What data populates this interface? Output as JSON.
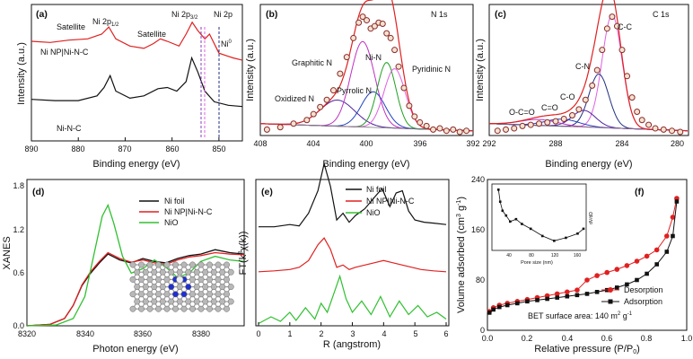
{
  "chart_data": [
    {
      "id": "a",
      "panel_label": "(a)",
      "type": "line",
      "xlabel": "Binding energy (eV)",
      "ylabel": "Intensity (a.u.)",
      "xlim": [
        890,
        845
      ],
      "xticks": [
        "890",
        "880",
        "870",
        "860",
        "850"
      ],
      "annotations": [
        "Satellite",
        "Ni 2p1/2",
        "Satellite",
        "Ni 2p3/2",
        "Ni 2p",
        "Ni0",
        "Ni NP|Ni-N-C",
        "Ni-N-C"
      ],
      "series": [
        {
          "name": "Ni NP|Ni-N-C",
          "color": "#e02020",
          "x": [
            890,
            886,
            882,
            878,
            875,
            873.5,
            872,
            869,
            866,
            864,
            862.5,
            861,
            858.5,
            857,
            855.7,
            854.5,
            853,
            852,
            850,
            847,
            845
          ],
          "y": [
            0.84,
            0.83,
            0.85,
            0.86,
            0.9,
            0.96,
            0.86,
            0.8,
            0.78,
            0.82,
            0.86,
            0.84,
            0.8,
            0.9,
            1.0,
            0.93,
            0.86,
            0.9,
            0.74,
            0.7,
            0.68
          ]
        },
        {
          "name": "Ni-N-C",
          "color": "#111111",
          "x": [
            890,
            885,
            880,
            876,
            874.5,
            873.2,
            872,
            869,
            866,
            863,
            861,
            859,
            857,
            855.8,
            854.5,
            853,
            851,
            848,
            845
          ],
          "y": [
            0.35,
            0.34,
            0.34,
            0.38,
            0.45,
            0.55,
            0.42,
            0.36,
            0.38,
            0.44,
            0.45,
            0.42,
            0.5,
            0.7,
            0.58,
            0.42,
            0.33,
            0.3,
            0.29
          ]
        }
      ]
    },
    {
      "id": "b",
      "panel_label": "(b)",
      "title": "N 1s",
      "type": "line",
      "xlabel": "Binding energy (eV)",
      "ylabel": "Intensity (a.u.)",
      "xlim": [
        408,
        392
      ],
      "xticks": [
        "408",
        "404",
        "400",
        "396",
        "392"
      ],
      "peak_labels": [
        "Graphitic N",
        "Ni-N",
        "Pyridinic N",
        "Oxidized N",
        "Pyrrolic N"
      ],
      "components": [
        {
          "name": "Oxidized N",
          "center": 402.2,
          "height": 0.22,
          "width": 1.3,
          "color": "#5020a0"
        },
        {
          "name": "Graphitic N",
          "center": 400.3,
          "height": 0.72,
          "width": 0.9,
          "color": "#c030c0"
        },
        {
          "name": "Pyrrolic N",
          "center": 399.5,
          "height": 0.3,
          "width": 0.9,
          "color": "#2040c0"
        },
        {
          "name": "Ni-N",
          "center": 398.5,
          "height": 0.55,
          "width": 0.7,
          "color": "#20a020"
        },
        {
          "name": "Pyridinic N",
          "center": 397.9,
          "height": 0.5,
          "width": 0.8,
          "color": "#e060e0"
        }
      ],
      "points": {
        "x": [
          407.5,
          406.5,
          405.5,
          404.5,
          404.0,
          403.5,
          403.0,
          402.5,
          402.0,
          401.5,
          401.0,
          400.6,
          400.3,
          400.0,
          399.7,
          399.4,
          399.1,
          398.8,
          398.5,
          398.2,
          397.9,
          397.6,
          397.2,
          396.8,
          396.4,
          396.0,
          395.5,
          395.0,
          394.5,
          394.0,
          393.5,
          393.0,
          392.5
        ],
        "y": [
          0.05,
          0.07,
          0.1,
          0.13,
          0.18,
          0.24,
          0.3,
          0.38,
          0.52,
          0.66,
          0.82,
          0.95,
          1.0,
          0.97,
          0.9,
          0.92,
          0.95,
          0.94,
          0.86,
          0.82,
          0.72,
          0.58,
          0.4,
          0.25,
          0.16,
          0.11,
          0.08,
          0.05,
          0.06,
          0.04,
          0.05,
          0.03,
          0.04
        ]
      }
    },
    {
      "id": "c",
      "panel_label": "(c)",
      "title": "C 1s",
      "type": "line",
      "xlabel": "Binding energy (eV)",
      "ylabel": "Intensity (a.u.)",
      "xlim": [
        292,
        280
      ],
      "xticks": [
        "292",
        "288",
        "284",
        "280"
      ],
      "peak_labels": [
        "C-C",
        "C-N",
        "C-O",
        "C=O",
        "O-C=O"
      ],
      "components": [
        {
          "name": "C-C",
          "center": 284.6,
          "height": 0.95,
          "width": 0.6,
          "color": "#e060e0"
        },
        {
          "name": "C-N",
          "center": 285.4,
          "height": 0.45,
          "width": 0.6,
          "color": "#203080"
        },
        {
          "name": "C-O",
          "center": 286.3,
          "height": 0.14,
          "width": 0.7,
          "color": "#5020a0"
        },
        {
          "name": "C=O",
          "center": 287.6,
          "height": 0.06,
          "width": 1.0,
          "color": "#2040c0"
        },
        {
          "name": "O-C=O",
          "center": 289.0,
          "height": 0.05,
          "width": 1.1,
          "color": "#c030c0"
        }
      ],
      "points": {
        "x": [
          291.5,
          291.0,
          290.5,
          290.0,
          289.5,
          289.0,
          288.5,
          288.0,
          287.5,
          287.0,
          286.6,
          286.2,
          285.8,
          285.5,
          285.2,
          284.9,
          284.6,
          284.3,
          284.0,
          283.7,
          283.4,
          283.1,
          282.8,
          282.4,
          282.0,
          281.5,
          281.0,
          280.5
        ],
        "y": [
          0.04,
          0.05,
          0.06,
          0.08,
          0.09,
          0.1,
          0.11,
          0.12,
          0.14,
          0.17,
          0.22,
          0.3,
          0.42,
          0.55,
          0.72,
          0.9,
          1.0,
          0.92,
          0.72,
          0.5,
          0.32,
          0.2,
          0.13,
          0.09,
          0.06,
          0.05,
          0.04,
          0.03
        ]
      }
    },
    {
      "id": "d",
      "panel_label": "(d)",
      "type": "line",
      "xlabel": "Photon energy (eV)",
      "ylabel": "XANES",
      "xlim": [
        8320,
        8395
      ],
      "ylim": [
        0,
        2.0
      ],
      "xticks": [
        "8320",
        "8340",
        "8360",
        "8380"
      ],
      "yticks": [
        "0.0",
        "0.6",
        "1.2",
        "1.8"
      ],
      "series": [
        {
          "name": "Ni foil",
          "color": "#111111",
          "x": [
            8320,
            8328,
            8333,
            8336,
            8339,
            8342,
            8345,
            8348,
            8352,
            8356,
            8360,
            8364,
            8368,
            8372,
            8376,
            8380,
            8385,
            8390,
            8395
          ],
          "y": [
            0.0,
            0.02,
            0.1,
            0.28,
            0.55,
            0.72,
            0.86,
            0.98,
            0.9,
            0.86,
            0.92,
            0.88,
            0.86,
            0.92,
            0.96,
            0.98,
            1.04,
            1.0,
            0.98
          ]
        },
        {
          "name": "Ni NP|Ni-N-C",
          "color": "#e02020",
          "x": [
            8320,
            8328,
            8333,
            8336,
            8339,
            8342,
            8345,
            8348,
            8352,
            8356,
            8360,
            8364,
            8368,
            8372,
            8376,
            8380,
            8385,
            8390,
            8395
          ],
          "y": [
            0.0,
            0.02,
            0.1,
            0.28,
            0.56,
            0.74,
            0.88,
            1.0,
            0.92,
            0.87,
            0.9,
            0.86,
            0.84,
            0.9,
            0.94,
            0.96,
            1.0,
            0.98,
            0.97
          ]
        },
        {
          "name": "NiO",
          "color": "#30c030",
          "x": [
            8320,
            8330,
            8336,
            8340,
            8343,
            8346,
            8348,
            8350,
            8353,
            8356,
            8360,
            8364,
            8368,
            8372,
            8376,
            8380,
            8385,
            8390,
            8395
          ],
          "y": [
            0.0,
            0.01,
            0.1,
            0.4,
            0.95,
            1.5,
            1.65,
            1.4,
            0.95,
            0.72,
            0.78,
            0.9,
            0.8,
            0.66,
            0.72,
            0.88,
            0.95,
            0.9,
            0.88
          ]
        }
      ]
    },
    {
      "id": "e",
      "panel_label": "(e)",
      "type": "line",
      "xlabel": "R (angstrom)",
      "ylabel": "FT(k³χ(k))",
      "xlim": [
        0,
        6
      ],
      "xticks": [
        "0",
        "1",
        "2",
        "3",
        "4",
        "5",
        "6"
      ],
      "series": [
        {
          "name": "Ni foil",
          "color": "#111111",
          "offset": 2,
          "x": [
            0,
            0.5,
            1.0,
            1.3,
            1.6,
            1.9,
            2.1,
            2.3,
            2.5,
            2.7,
            2.9,
            3.1,
            3.4,
            3.7,
            3.95,
            4.2,
            4.4,
            4.6,
            4.8,
            5.0,
            5.3,
            5.6,
            6.0
          ],
          "y": [
            0.2,
            0.2,
            0.25,
            0.22,
            0.5,
            1.0,
            1.6,
            1.1,
            0.35,
            0.5,
            0.3,
            0.45,
            0.6,
            0.85,
            1.05,
            0.65,
            0.95,
            1.0,
            0.55,
            0.35,
            0.3,
            0.28,
            0.25
          ]
        },
        {
          "name": "Ni NP|Ni-N-C",
          "color": "#e02020",
          "offset": 1,
          "x": [
            0,
            0.5,
            1.0,
            1.3,
            1.6,
            1.9,
            2.1,
            2.3,
            2.5,
            2.7,
            2.9,
            3.1,
            3.4,
            3.7,
            4.0,
            4.3,
            4.6,
            4.9,
            5.2,
            5.6,
            6.0
          ],
          "y": [
            0.2,
            0.22,
            0.25,
            0.3,
            0.45,
            0.8,
            0.95,
            0.7,
            0.3,
            0.35,
            0.25,
            0.3,
            0.35,
            0.4,
            0.45,
            0.4,
            0.35,
            0.3,
            0.25,
            0.22,
            0.2
          ]
        },
        {
          "name": "NiO",
          "color": "#30c030",
          "offset": 0,
          "x": [
            0,
            0.4,
            0.7,
            1.0,
            1.2,
            1.5,
            1.8,
            2.0,
            2.2,
            2.4,
            2.6,
            2.8,
            3.0,
            3.3,
            3.6,
            3.9,
            4.2,
            4.5,
            4.8,
            5.1,
            5.4,
            5.7,
            6.0
          ],
          "y": [
            0.05,
            0.2,
            0.1,
            0.3,
            0.12,
            0.4,
            0.15,
            0.5,
            0.3,
            0.7,
            1.1,
            0.6,
            0.3,
            0.55,
            0.25,
            0.65,
            0.2,
            0.55,
            0.25,
            0.45,
            0.2,
            0.3,
            0.15
          ]
        }
      ]
    },
    {
      "id": "f",
      "panel_label": "(f)",
      "type": "line",
      "xlabel": "Relative pressure (P/P0)",
      "ylabel": "Volume adsorbed (cm3 g-1)",
      "xlim": [
        0,
        1.0
      ],
      "ylim": [
        0,
        240
      ],
      "xticks": [
        "0.0",
        "0.2",
        "0.4",
        "0.6",
        "0.8",
        "1.0"
      ],
      "yticks": [
        "0",
        "80",
        "160",
        "240"
      ],
      "note": "BET surface area: 140 m2 g-1",
      "series": [
        {
          "name": "Desorption",
          "color": "#e02020",
          "marker": "circle",
          "x": [
            0.01,
            0.03,
            0.06,
            0.1,
            0.15,
            0.2,
            0.25,
            0.3,
            0.35,
            0.4,
            0.45,
            0.5,
            0.55,
            0.6,
            0.65,
            0.7,
            0.75,
            0.8,
            0.85,
            0.9,
            0.93,
            0.95
          ],
          "y": [
            30,
            36,
            40,
            43,
            46,
            49,
            52,
            55,
            58,
            61,
            64,
            80,
            87,
            92,
            97,
            103,
            110,
            118,
            128,
            150,
            180,
            210
          ]
        },
        {
          "name": "Adsorption",
          "color": "#111111",
          "marker": "square",
          "x": [
            0.01,
            0.03,
            0.06,
            0.1,
            0.15,
            0.2,
            0.25,
            0.3,
            0.35,
            0.4,
            0.45,
            0.5,
            0.55,
            0.6,
            0.65,
            0.7,
            0.75,
            0.8,
            0.85,
            0.9,
            0.93,
            0.95
          ],
          "y": [
            28,
            33,
            37,
            40,
            43,
            46,
            48,
            50,
            52,
            54,
            56,
            58,
            61,
            64,
            68,
            73,
            80,
            90,
            105,
            125,
            150,
            205
          ]
        }
      ],
      "inset": {
        "xlabel": "Pore size (nm)",
        "ylabel": "dV/dD",
        "xticks": [
          "40",
          "80",
          "120",
          "160"
        ],
        "x": [
          5,
          8,
          12,
          18,
          25,
          35,
          45,
          60,
          80,
          100,
          120,
          140,
          150
        ],
        "y": [
          0.95,
          0.75,
          0.6,
          0.52,
          0.42,
          0.46,
          0.38,
          0.3,
          0.18,
          0.1,
          0.15,
          0.22,
          0.3
        ]
      }
    }
  ]
}
